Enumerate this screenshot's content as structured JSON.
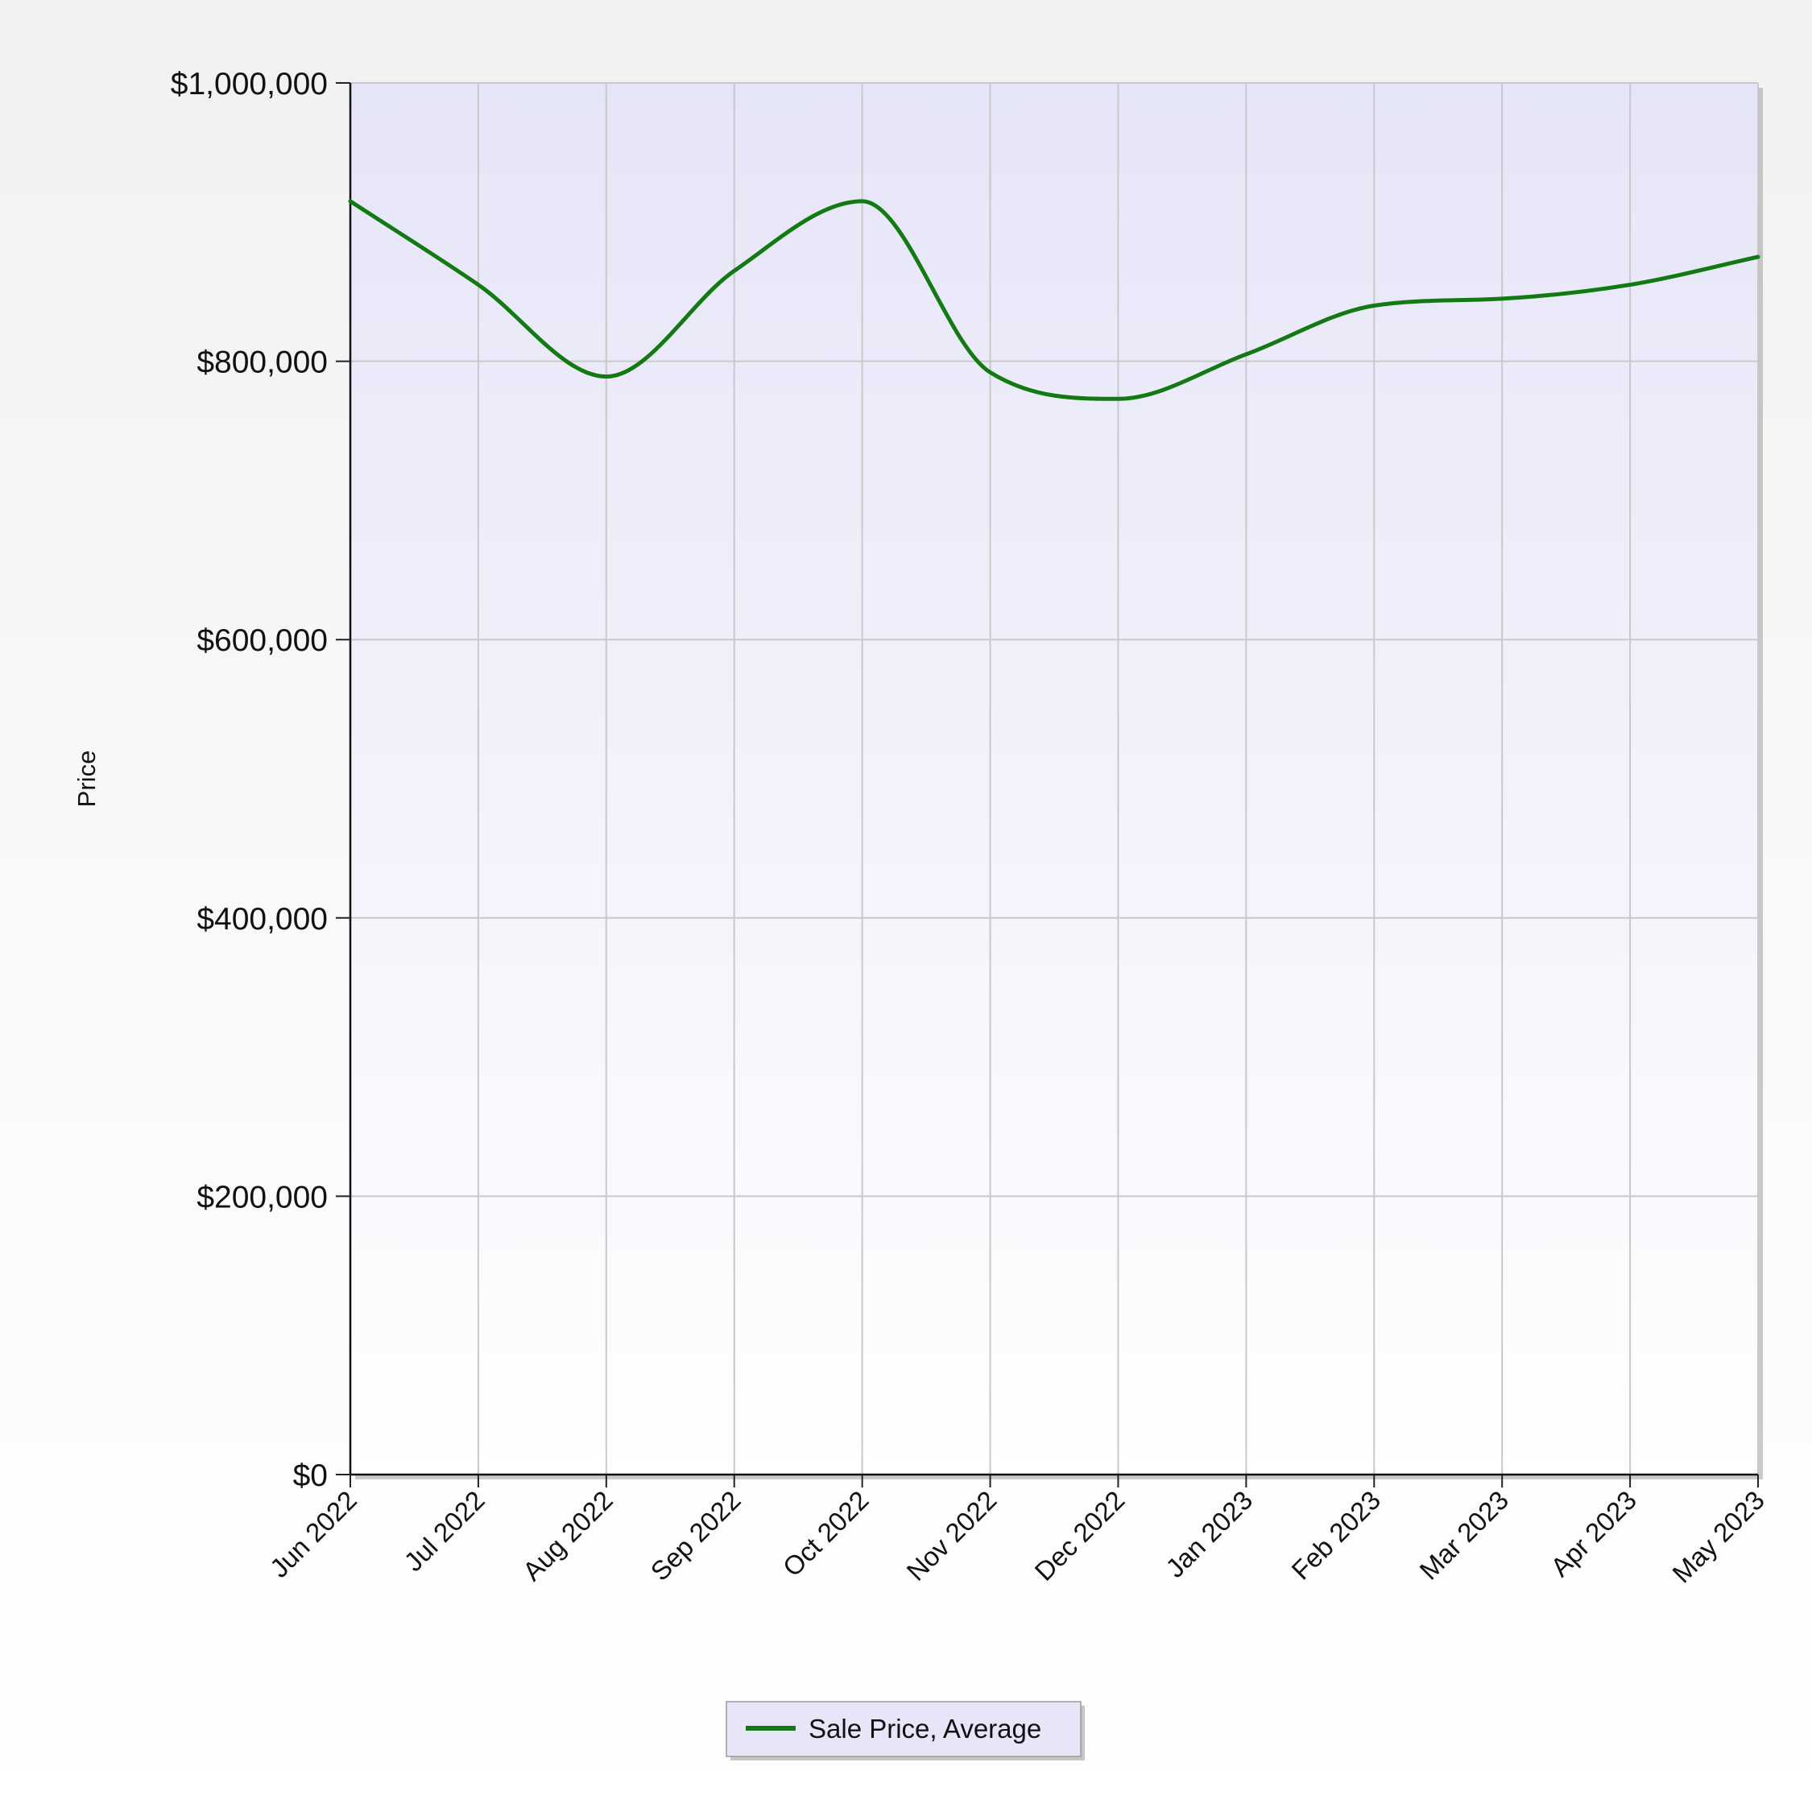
{
  "chart_data": {
    "type": "line",
    "title": "",
    "xlabel": "",
    "ylabel": "Price",
    "x": [
      "Jun 2022",
      "Jul 2022",
      "Aug 2022",
      "Sep 2022",
      "Oct 2022",
      "Nov 2022",
      "Dec 2022",
      "Jan 2023",
      "Feb 2023",
      "Mar 2023",
      "Apr 2023",
      "May 2023"
    ],
    "ylim": [
      0,
      1000000
    ],
    "yticks": [
      0,
      200000,
      400000,
      600000,
      800000,
      1000000
    ],
    "ytick_labels": [
      "$0",
      "$200,000",
      "$400,000",
      "$600,000",
      "$800,000",
      "$1,000,000"
    ],
    "series": [
      {
        "name": "Sale Price, Average",
        "color": "#137a13",
        "values": [
          915000,
          855000,
          789000,
          865000,
          915000,
          792000,
          773000,
          805000,
          840000,
          845000,
          855000,
          875000
        ]
      }
    ],
    "grid": true,
    "smooth": true,
    "legend_position": "bottom-center",
    "plot_background": "lavender gradient"
  }
}
